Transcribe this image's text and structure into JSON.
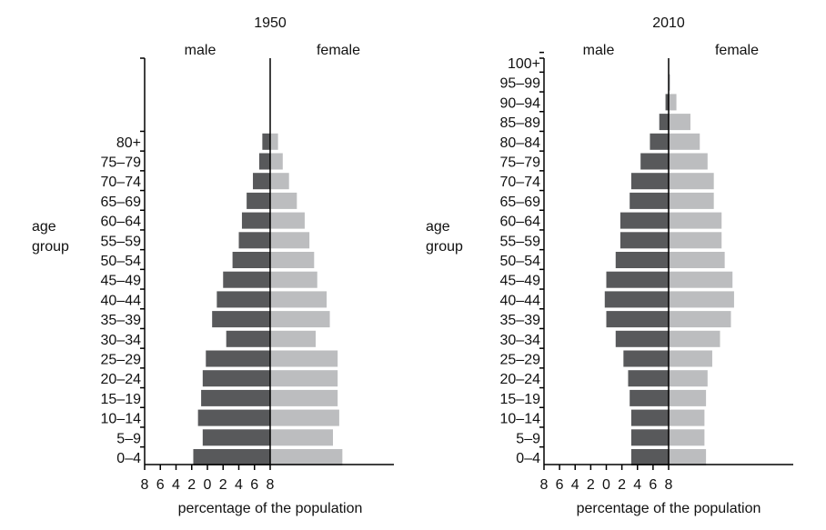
{
  "chart_data": [
    {
      "type": "bar",
      "orientation": "horizontal-population-pyramid",
      "title": "1950",
      "xlabel": "percentage of the population",
      "ylabel": "age group",
      "xlim": [
        -8,
        8
      ],
      "xticks": [
        "8",
        "6",
        "4",
        "2",
        "0",
        "2",
        "4",
        "6",
        "8"
      ],
      "categories": [
        "0–4",
        "5–9",
        "10–14",
        "15–19",
        "20–24",
        "25–29",
        "30–34",
        "35–39",
        "40–44",
        "45–49",
        "50–54",
        "55–59",
        "60–64",
        "65–69",
        "70–74",
        "75–79",
        "80+"
      ],
      "series": [
        {
          "name": "male",
          "color": "#58595b",
          "values": [
            4.9,
            4.3,
            4.6,
            4.4,
            4.3,
            4.1,
            2.8,
            3.7,
            3.4,
            3.0,
            2.4,
            2.0,
            1.8,
            1.5,
            1.1,
            0.7,
            0.5
          ]
        },
        {
          "name": "female",
          "color": "#bcbdbf",
          "values": [
            4.6,
            4.0,
            4.4,
            4.3,
            4.3,
            4.3,
            2.9,
            3.8,
            3.6,
            3.0,
            2.8,
            2.5,
            2.2,
            1.7,
            1.2,
            0.8,
            0.5
          ]
        }
      ]
    },
    {
      "type": "bar",
      "orientation": "horizontal-population-pyramid",
      "title": "2010",
      "xlabel": "percentage of the population",
      "ylabel": "age group",
      "xlim": [
        -8,
        8
      ],
      "xticks": [
        "8",
        "6",
        "4",
        "2",
        "0",
        "2",
        "4",
        "6",
        "8"
      ],
      "categories": [
        "0–4",
        "5–9",
        "10–14",
        "15–19",
        "20–24",
        "25–29",
        "30–34",
        "35–39",
        "40–44",
        "45–49",
        "50–54",
        "55–59",
        "60–64",
        "65–69",
        "70–74",
        "75–79",
        "80–84",
        "85–89",
        "90–94",
        "95–99",
        "100+"
      ],
      "series": [
        {
          "name": "male",
          "color": "#58595b",
          "values": [
            2.4,
            2.4,
            2.4,
            2.5,
            2.6,
            2.9,
            3.4,
            4.0,
            4.1,
            4.0,
            3.4,
            3.1,
            3.1,
            2.5,
            2.4,
            1.8,
            1.2,
            0.6,
            0.2,
            0.0,
            0.0
          ]
        },
        {
          "name": "female",
          "color": "#bcbdbf",
          "values": [
            2.4,
            2.3,
            2.3,
            2.4,
            2.5,
            2.8,
            3.3,
            4.0,
            4.2,
            4.1,
            3.6,
            3.4,
            3.4,
            2.9,
            2.9,
            2.5,
            2.0,
            1.4,
            0.5,
            0.1,
            0.0
          ]
        }
      ]
    }
  ]
}
